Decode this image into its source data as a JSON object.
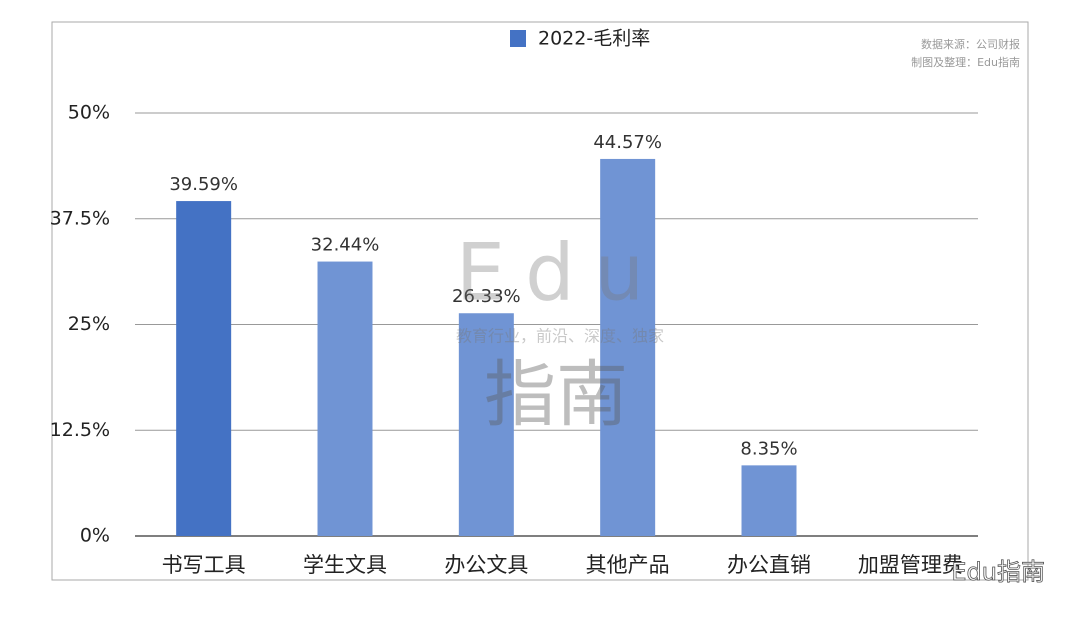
{
  "chart_data": {
    "type": "bar",
    "legend": "2022-毛利率",
    "source_lines": [
      "数据来源：公司财报",
      "制图及整理：Edu指南"
    ],
    "watermark": {
      "top": "Edu",
      "middle": "教育行业，前沿、深度、独家",
      "bottom": "指南",
      "corner": "Edu指南"
    },
    "categories": [
      "书写工具",
      "学生文具",
      "办公文具",
      "其他产品",
      "办公直销",
      "加盟管理费"
    ],
    "values": [
      39.59,
      32.44,
      26.33,
      44.57,
      8.35,
      null
    ],
    "value_labels": [
      "39.59%",
      "32.44%",
      "26.33%",
      "44.57%",
      "8.35%",
      null
    ],
    "colors": [
      "#4472c4",
      "#7094d4",
      "#7094d4",
      "#7094d4",
      "#7094d4",
      "#7094d4"
    ],
    "legend_color": "#4472c4",
    "ylim": [
      0,
      50
    ],
    "yticks": [
      {
        "value": 0,
        "label": "0%"
      },
      {
        "value": 12.5,
        "label": "12.5%"
      },
      {
        "value": 25,
        "label": "25%"
      },
      {
        "value": 37.5,
        "label": "37.5%"
      },
      {
        "value": 50,
        "label": "50%"
      }
    ],
    "grid": true
  }
}
